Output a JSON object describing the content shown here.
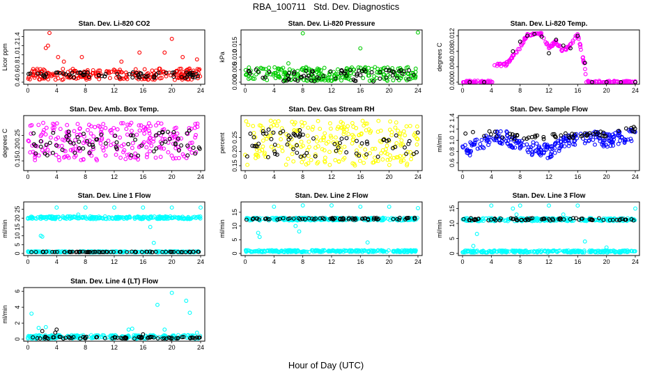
{
  "title": "RBA_100711   Std. Dev. Diagnostics",
  "xlabel": "Hour of Day (UTC)",
  "colors": {
    "black": "#000000",
    "red": "#ff0000",
    "green": "#00cc00",
    "magenta": "#ff00ff",
    "yellow": "#ffff00",
    "blue": "#0000ff",
    "cyan": "#00ffff"
  },
  "chart_data": [
    {
      "type": "scatter",
      "title": "Stan. Dev. Li-820 CO2",
      "ylabel": "Licor ppm",
      "xlim": [
        0,
        24
      ],
      "ylim": [
        0.4,
        1.5
      ],
      "xticks": [
        "0",
        "4",
        "8",
        "12",
        "16",
        "20",
        "24"
      ],
      "yticks": [
        "0.4",
        "0.6",
        "0.8",
        "1.0",
        "1.2",
        "1.4"
      ],
      "series": [
        {
          "color": "red",
          "band": [
            0.45,
            0.7
          ],
          "outliers": [
            [
              2.5,
              1.15
            ],
            [
              2.8,
              1.2
            ],
            [
              3,
              1.48
            ],
            [
              4.2,
              0.95
            ],
            [
              5,
              0.85
            ],
            [
              7.5,
              0.95
            ],
            [
              13,
              0.85
            ],
            [
              15.5,
              1.05
            ],
            [
              19,
              1.05
            ],
            [
              20,
              1.35
            ],
            [
              21.5,
              0.95
            ],
            [
              23.5,
              0.9
            ]
          ]
        },
        {
          "color": "black",
          "band": [
            0.48,
            0.62
          ],
          "outliers": []
        }
      ]
    },
    {
      "type": "scatter",
      "title": "Stan. Dev. Li-820 Pressure",
      "ylabel": "kPa",
      "xlim": [
        0,
        24
      ],
      "ylim": [
        0.0,
        0.02
      ],
      "xticks": [
        "0",
        "4",
        "8",
        "12",
        "16",
        "20",
        "24"
      ],
      "yticks": [
        "0.000",
        "0.005",
        "0.010",
        "0.015"
      ],
      "series": [
        {
          "color": "green",
          "band": [
            0.0005,
            0.006
          ],
          "outliers": [
            [
              8,
              0.0195
            ],
            [
              16,
              0.0135
            ],
            [
              24,
              0.0198
            ],
            [
              6,
              0.0075
            ]
          ]
        },
        {
          "color": "black",
          "band": [
            0.0003,
            0.005
          ],
          "outliers": []
        }
      ]
    },
    {
      "type": "scatter",
      "title": "Stan. Dev. Li-820 Temp.",
      "ylabel": "degrees C",
      "xlim": [
        0,
        24
      ],
      "ylim": [
        0.0,
        0.013
      ],
      "xticks": [
        "0",
        "4",
        "8",
        "12",
        "16",
        "20",
        "24"
      ],
      "yticks": [
        "0.000",
        "0.004",
        "0.008",
        "0.012"
      ],
      "series": [
        {
          "color": "magenta",
          "curve": [
            [
              0,
              0
            ],
            [
              4.2,
              0
            ],
            [
              4.3,
              0.0045
            ],
            [
              6,
              0.0045
            ],
            [
              8,
              0.009
            ],
            [
              9,
              0.0125
            ],
            [
              11,
              0.0125
            ],
            [
              12,
              0.009
            ],
            [
              13,
              0.0105
            ],
            [
              14,
              0.008
            ],
            [
              15,
              0.0095
            ],
            [
              16,
              0.0125
            ],
            [
              17,
              0.004
            ],
            [
              17.2,
              0
            ],
            [
              24,
              0
            ]
          ]
        },
        {
          "color": "black",
          "points": [
            [
              1,
              0
            ],
            [
              3,
              0
            ],
            [
              7,
              0.008
            ],
            [
              8,
              0.0105
            ],
            [
              9,
              0.012
            ],
            [
              10,
              0.0125
            ],
            [
              11,
              0.0118
            ],
            [
              12,
              0.0075
            ],
            [
              13,
              0.011
            ],
            [
              14,
              0.0095
            ],
            [
              15,
              0.0088
            ],
            [
              16,
              0.012
            ],
            [
              17,
              0.005
            ],
            [
              18,
              0
            ],
            [
              20,
              0
            ],
            [
              22,
              0
            ],
            [
              24,
              0
            ]
          ]
        }
      ]
    },
    {
      "type": "scatter",
      "title": "Stan. Dev. Amb. Box Temp.",
      "ylabel": "degrees C",
      "xlim": [
        0,
        24
      ],
      "ylim": [
        0.12,
        0.32
      ],
      "xticks": [
        "0",
        "4",
        "8",
        "12",
        "16",
        "20",
        "24"
      ],
      "yticks": [
        "0.15",
        "0.20",
        "0.25"
      ],
      "series": [
        {
          "color": "magenta",
          "band": [
            0.15,
            0.3
          ],
          "outliers": []
        },
        {
          "color": "black",
          "band": [
            0.17,
            0.27
          ],
          "outliers": []
        }
      ]
    },
    {
      "type": "scatter",
      "title": "Stan. Dev. Gas Stream RH",
      "ylabel": "percent",
      "xlim": [
        0,
        24
      ],
      "ylim": [
        0.14,
        0.32
      ],
      "xticks": [
        "0",
        "4",
        "8",
        "12",
        "16",
        "20",
        "24"
      ],
      "yticks": [
        "0.15",
        "0.20",
        "0.25"
      ],
      "series": [
        {
          "color": "yellow",
          "band": [
            0.15,
            0.31
          ],
          "outliers": []
        },
        {
          "color": "black",
          "band": [
            0.18,
            0.28
          ],
          "outliers": []
        }
      ]
    },
    {
      "type": "scatter",
      "title": "Stan. Dev. Sample Flow",
      "ylabel": "ml/min",
      "xlim": [
        0,
        24
      ],
      "ylim": [
        0.5,
        1.4
      ],
      "xticks": [
        "0",
        "4",
        "8",
        "12",
        "16",
        "20",
        "24"
      ],
      "yticks": [
        "0.6",
        "0.8",
        "1.0",
        "1.2",
        "1.4"
      ],
      "series": [
        {
          "color": "blue",
          "curve": [
            [
              0,
              0.8
            ],
            [
              2,
              0.9
            ],
            [
              4,
              1.05
            ],
            [
              6,
              1.05
            ],
            [
              8,
              0.9
            ],
            [
              10,
              0.85
            ],
            [
              12,
              0.8
            ],
            [
              14,
              0.95
            ],
            [
              16,
              1.0
            ],
            [
              18,
              1.05
            ],
            [
              20,
              1.0
            ],
            [
              22,
              1.05
            ],
            [
              24,
              1.1
            ]
          ],
          "spread": 0.12
        },
        {
          "color": "black",
          "curve": [
            [
              4,
              1.12
            ],
            [
              8,
              1.05
            ],
            [
              12,
              1.05
            ],
            [
              16,
              1.1
            ],
            [
              20,
              1.12
            ],
            [
              24,
              1.2
            ]
          ],
          "spread": 0.05
        }
      ]
    },
    {
      "type": "scatter",
      "title": "Stan. Dev. Line 1 Flow",
      "ylabel": "ml/min",
      "xlim": [
        0,
        24
      ],
      "ylim": [
        0,
        28
      ],
      "xticks": [
        "0",
        "4",
        "8",
        "12",
        "16",
        "20",
        "24"
      ],
      "yticks": [
        "0",
        "5",
        "10",
        "15",
        "20",
        "25"
      ],
      "series": [
        {
          "color": "cyan",
          "band": [
            19.5,
            21
          ],
          "outliers": [
            [
              1.8,
              10
            ],
            [
              2,
              9.5
            ],
            [
              4,
              26
            ],
            [
              7,
              22
            ],
            [
              8,
              26
            ],
            [
              12,
              26
            ],
            [
              16,
              26
            ],
            [
              17,
              15
            ],
            [
              17.5,
              6
            ],
            [
              20,
              26
            ],
            [
              24,
              26
            ]
          ]
        },
        {
          "color": "cyan",
          "band": [
            0.6,
            1.2
          ],
          "outliers": []
        },
        {
          "color": "black",
          "band": [
            0.7,
            1.0
          ],
          "outliers": []
        }
      ]
    },
    {
      "type": "scatter",
      "title": "Stan. Dev. Line 2 Flow",
      "ylabel": "ml/min",
      "xlim": [
        0,
        24
      ],
      "ylim": [
        0,
        18
      ],
      "xticks": [
        "0",
        "4",
        "8",
        "12",
        "16",
        "20",
        "24"
      ],
      "yticks": [
        "0",
        "5",
        "10",
        "15"
      ],
      "series": [
        {
          "color": "cyan",
          "band": [
            12,
            13
          ],
          "outliers": [
            [
              1.8,
              7.5
            ],
            [
              2,
              6
            ],
            [
              4,
              17
            ],
            [
              7,
              10
            ],
            [
              7.5,
              8
            ],
            [
              8,
              17.5
            ],
            [
              12,
              17.5
            ],
            [
              16,
              17
            ],
            [
              17,
              4
            ],
            [
              20,
              17
            ],
            [
              24,
              16.5
            ]
          ]
        },
        {
          "color": "black",
          "band": [
            12.2,
            13
          ],
          "outliers": []
        },
        {
          "color": "cyan",
          "band": [
            0.5,
            1.2
          ],
          "outliers": []
        }
      ]
    },
    {
      "type": "scatter",
      "title": "Stan. Dev. Line 3 Flow",
      "ylabel": "ml/min",
      "xlim": [
        0,
        24
      ],
      "ylim": [
        0,
        16.5
      ],
      "xticks": [
        "0",
        "4",
        "8",
        "12",
        "16",
        "20",
        "24"
      ],
      "yticks": [
        "0",
        "5",
        "10",
        "15"
      ],
      "series": [
        {
          "color": "cyan",
          "band": [
            10.8,
            11.8
          ],
          "outliers": [
            [
              1.5,
              2.5
            ],
            [
              2,
              6.5
            ],
            [
              4,
              16
            ],
            [
              7,
              15
            ],
            [
              7.5,
              13
            ],
            [
              8,
              16
            ],
            [
              12,
              16
            ],
            [
              14,
              13
            ],
            [
              16,
              16
            ],
            [
              17,
              4
            ],
            [
              20,
              2
            ],
            [
              24,
              15
            ]
          ]
        },
        {
          "color": "black",
          "band": [
            11.0,
            11.8
          ],
          "outliers": []
        },
        {
          "color": "cyan",
          "band": [
            0.3,
            1.0
          ],
          "outliers": []
        }
      ]
    },
    {
      "type": "scatter",
      "title": "Stan. Dev. Line 4 (LT) Flow",
      "ylabel": "ml/min",
      "xlim": [
        0,
        24
      ],
      "ylim": [
        0,
        6.2
      ],
      "xticks": [
        "0",
        "4",
        "8",
        "12",
        "16",
        "20",
        "24"
      ],
      "yticks": [
        "0",
        "2",
        "4",
        "6"
      ],
      "series": [
        {
          "color": "cyan",
          "band": [
            0.05,
            0.5
          ],
          "outliers": [
            [
              0.5,
              3.2
            ],
            [
              1.5,
              1.4
            ],
            [
              2.5,
              1.5
            ],
            [
              14,
              1.2
            ],
            [
              14.5,
              1.3
            ],
            [
              18,
              4.3
            ],
            [
              19,
              1.2
            ],
            [
              20,
              5.8
            ],
            [
              22,
              4.8
            ],
            [
              22.5,
              3.3
            ],
            [
              23.5,
              0.8
            ]
          ]
        },
        {
          "color": "black",
          "band": [
            0.05,
            0.3
          ],
          "outliers": [
            [
              2,
              1
            ],
            [
              4,
              1.2
            ],
            [
              3.8,
              0.8
            ],
            [
              16,
              0.6
            ],
            [
              23.5,
              0.2
            ]
          ]
        }
      ]
    }
  ]
}
